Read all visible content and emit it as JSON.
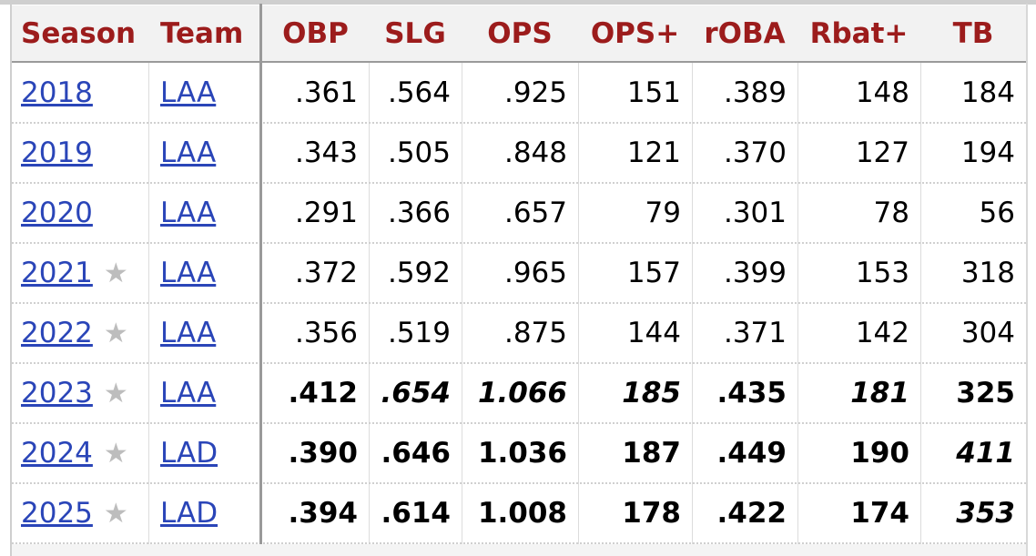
{
  "columns": [
    "Season",
    "Team",
    "OBP",
    "SLG",
    "OPS",
    "OPS+",
    "rOBA",
    "Rbat+",
    "TB"
  ],
  "rows": [
    {
      "season": "2018",
      "star": "",
      "team": "LAA",
      "OBP": ".361",
      "SLG": ".564",
      "OPS": ".925",
      "OPSp": "151",
      "rOBA": ".389",
      "Rbatp": "148",
      "TB": "184",
      "style": {
        "OBP": "",
        "SLG": "",
        "OPS": "",
        "OPSp": "",
        "rOBA": "",
        "Rbatp": "",
        "TB": ""
      }
    },
    {
      "season": "2019",
      "star": "",
      "team": "LAA",
      "OBP": ".343",
      "SLG": ".505",
      "OPS": ".848",
      "OPSp": "121",
      "rOBA": ".370",
      "Rbatp": "127",
      "TB": "194",
      "style": {
        "OBP": "",
        "SLG": "",
        "OPS": "",
        "OPSp": "",
        "rOBA": "",
        "Rbatp": "",
        "TB": ""
      }
    },
    {
      "season": "2020",
      "star": "",
      "team": "LAA",
      "OBP": ".291",
      "SLG": ".366",
      "OPS": ".657",
      "OPSp": "79",
      "rOBA": ".301",
      "Rbatp": "78",
      "TB": "56",
      "style": {
        "OBP": "",
        "SLG": "",
        "OPS": "",
        "OPSp": "",
        "rOBA": "",
        "Rbatp": "",
        "TB": ""
      }
    },
    {
      "season": "2021",
      "star": "★",
      "team": "LAA",
      "OBP": ".372",
      "SLG": ".592",
      "OPS": ".965",
      "OPSp": "157",
      "rOBA": ".399",
      "Rbatp": "153",
      "TB": "318",
      "style": {
        "OBP": "",
        "SLG": "",
        "OPS": "",
        "OPSp": "",
        "rOBA": "",
        "Rbatp": "",
        "TB": ""
      }
    },
    {
      "season": "2022",
      "star": "★",
      "team": "LAA",
      "OBP": ".356",
      "SLG": ".519",
      "OPS": ".875",
      "OPSp": "144",
      "rOBA": ".371",
      "Rbatp": "142",
      "TB": "304",
      "style": {
        "OBP": "",
        "SLG": "",
        "OPS": "",
        "OPSp": "",
        "rOBA": "",
        "Rbatp": "",
        "TB": ""
      }
    },
    {
      "season": "2023",
      "star": "★",
      "team": "LAA",
      "OBP": ".412",
      "SLG": ".654",
      "OPS": "1.066",
      "OPSp": "185",
      "rOBA": ".435",
      "Rbatp": "181",
      "TB": "325",
      "style": {
        "OBP": "b",
        "SLG": "bi",
        "OPS": "bi",
        "OPSp": "bi",
        "rOBA": "b",
        "Rbatp": "bi",
        "TB": "b"
      }
    },
    {
      "season": "2024",
      "star": "★",
      "team": "LAD",
      "OBP": ".390",
      "SLG": ".646",
      "OPS": "1.036",
      "OPSp": "187",
      "rOBA": ".449",
      "Rbatp": "190",
      "TB": "411",
      "style": {
        "OBP": "b",
        "SLG": "b",
        "OPS": "b",
        "OPSp": "b",
        "rOBA": "b",
        "Rbatp": "b",
        "TB": "bi"
      }
    },
    {
      "season": "2025",
      "star": "★",
      "team": "LAD",
      "OBP": ".394",
      "SLG": ".614",
      "OPS": "1.008",
      "OPSp": "178",
      "rOBA": ".422",
      "Rbatp": "174",
      "TB": "353",
      "style": {
        "OBP": "b",
        "SLG": "b",
        "OPS": "b",
        "OPSp": "b",
        "rOBA": "b",
        "Rbatp": "b",
        "TB": "bi"
      }
    }
  ],
  "colors": {
    "header_text": "#9c1c1c",
    "link": "#2a45b8",
    "star": "#bdbdbd"
  }
}
